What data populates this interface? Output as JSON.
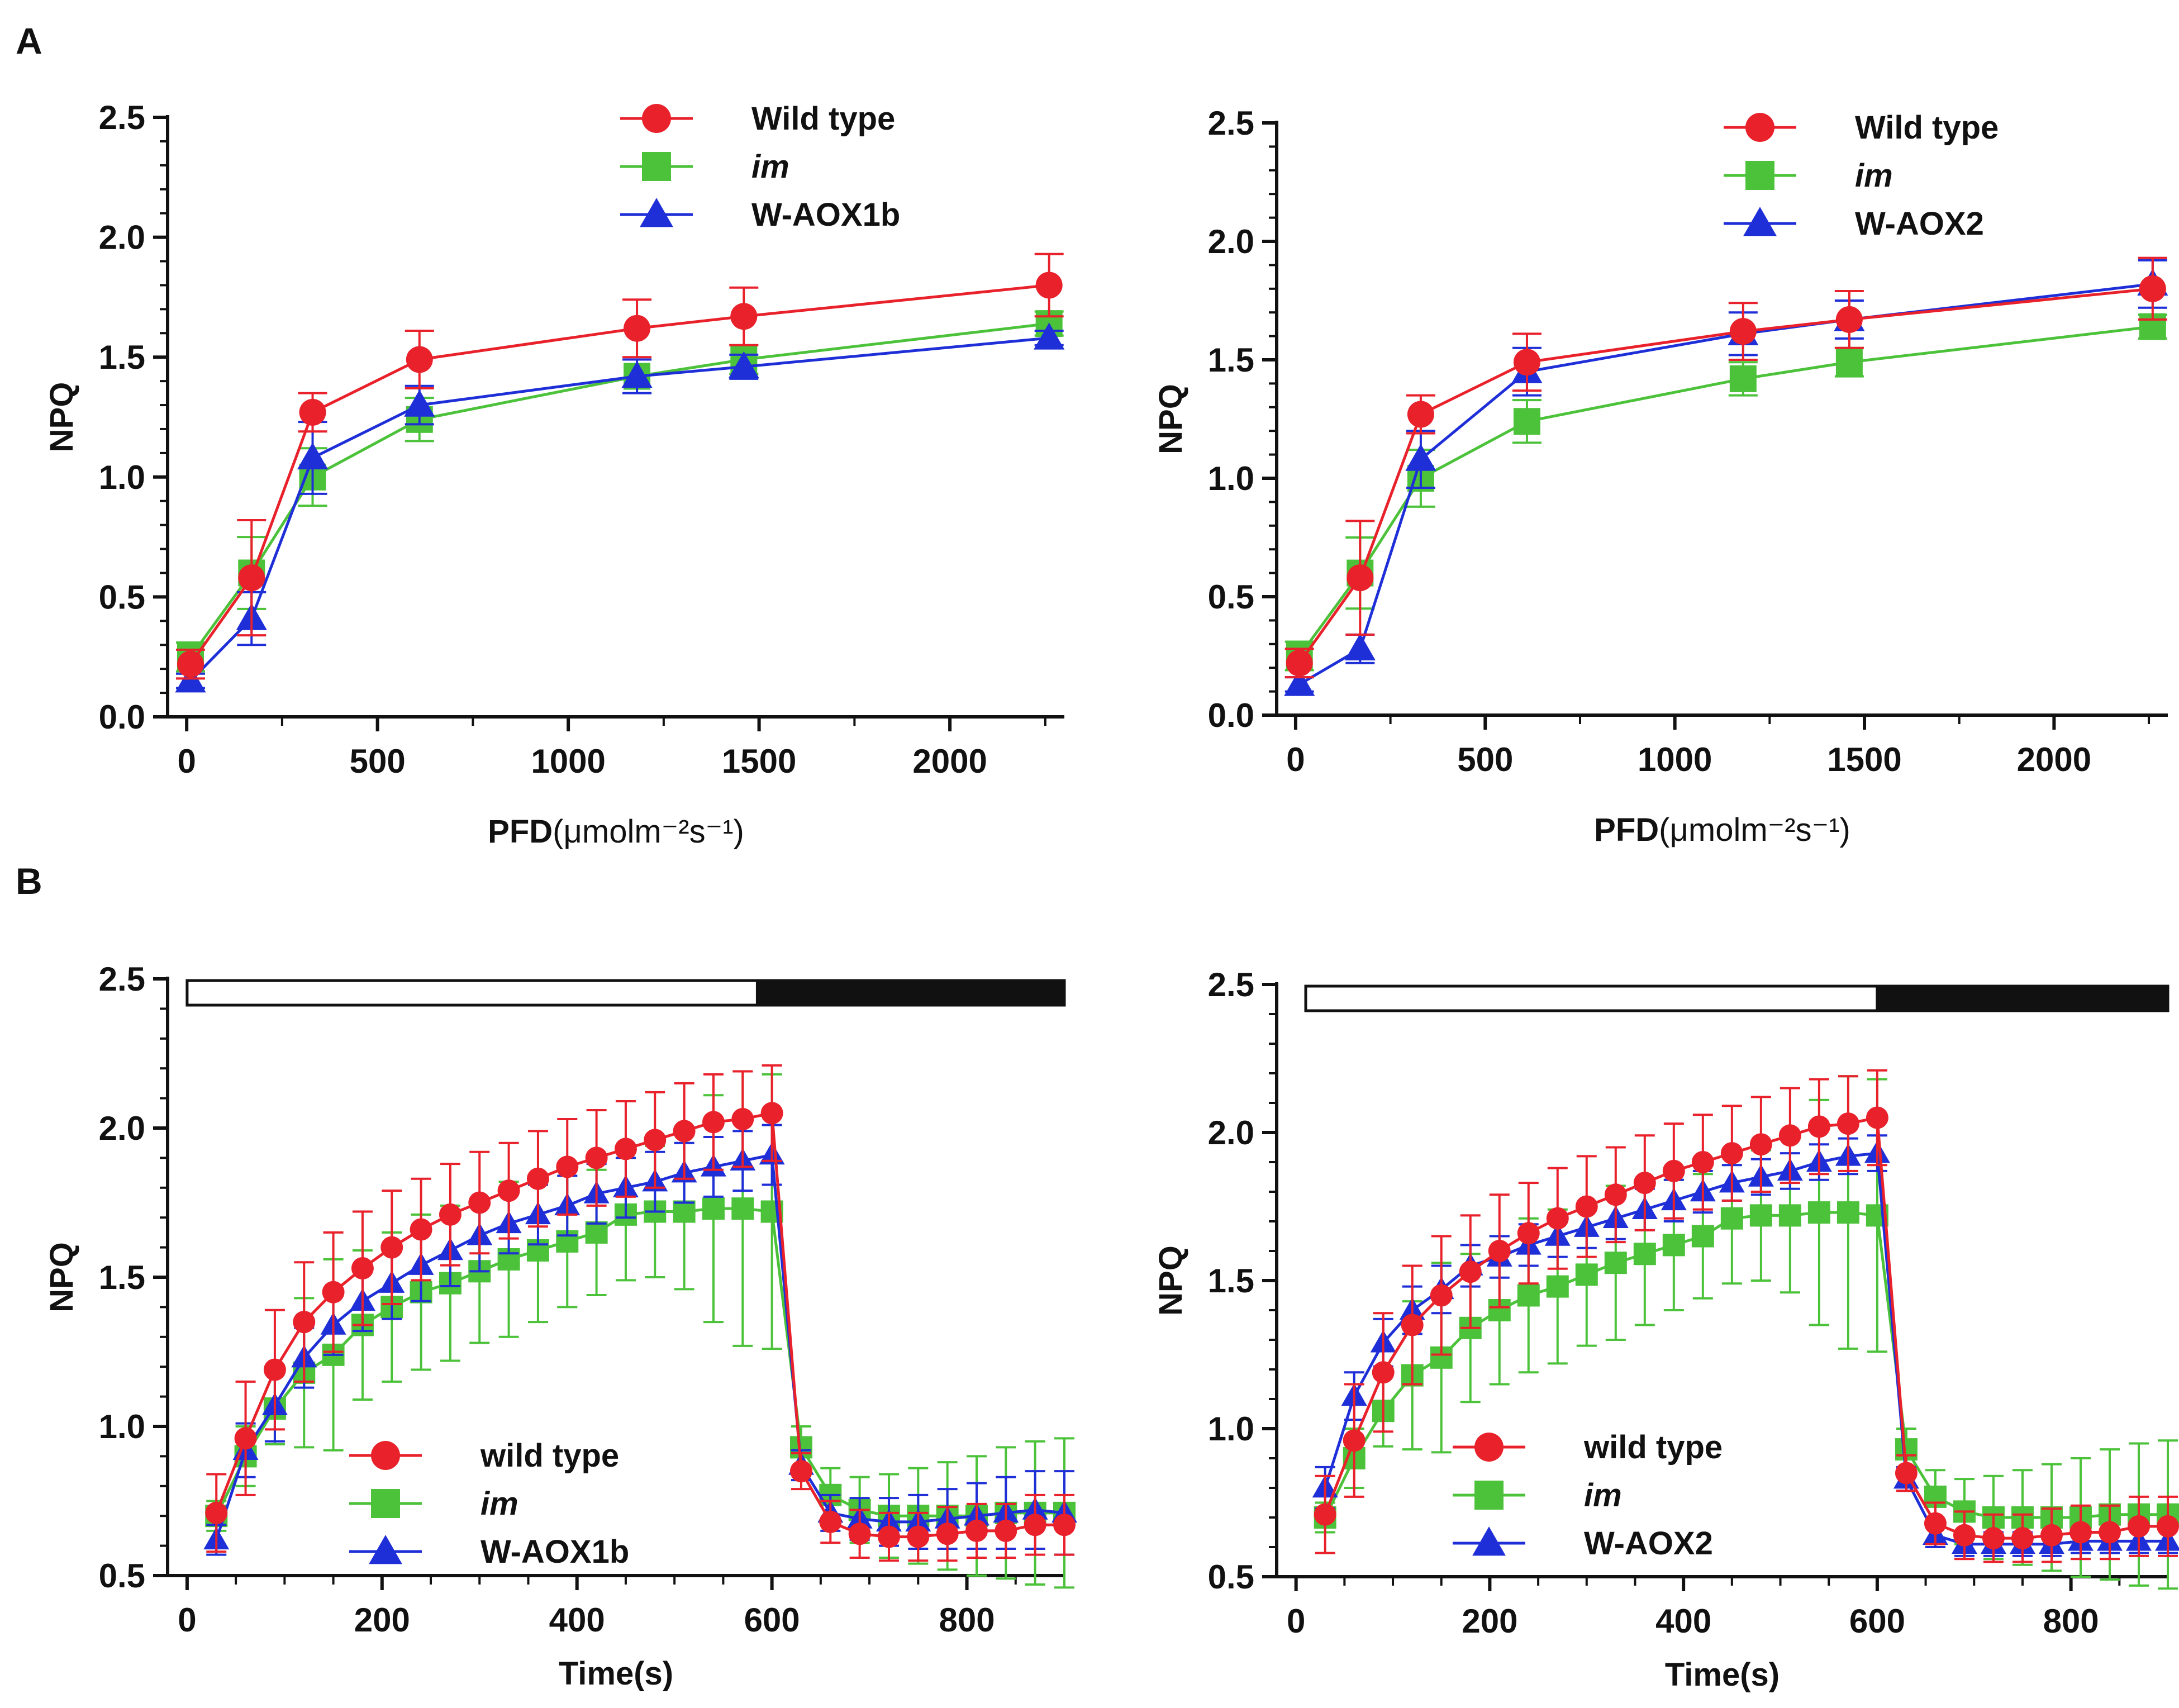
{
  "panel_labels": [
    "A",
    "B"
  ],
  "colors": {
    "wild_type": "#e8212b",
    "im": "#4cc23a",
    "aox": "#1f2fd8",
    "axis": "#111111"
  },
  "chart_data": [
    {
      "id": "A-left",
      "type": "line",
      "panel": "A",
      "xlabel": "PFD",
      "xunit": "(μmolm⁻²s⁻¹)",
      "ylabel": "NPQ",
      "xlim": [
        -50,
        2300
      ],
      "ylim": [
        0,
        2.5
      ],
      "xticks": [
        0,
        500,
        1000,
        1500,
        2000
      ],
      "yticks": [
        0.0,
        0.5,
        1.0,
        1.5,
        2.0,
        2.5
      ],
      "legend_position": "top-center",
      "series": [
        {
          "name": "Wild type",
          "color": "wild_type",
          "marker": "circle",
          "x": [
            10,
            170,
            330,
            610,
            1180,
            1460,
            2260
          ],
          "y": [
            0.22,
            0.58,
            1.27,
            1.49,
            1.62,
            1.67,
            1.8
          ],
          "err": [
            0.06,
            0.24,
            0.08,
            0.12,
            0.12,
            0.12,
            0.13
          ]
        },
        {
          "name": "im",
          "color": "im",
          "marker": "square",
          "italic": true,
          "x": [
            10,
            170,
            330,
            610,
            1180,
            1460,
            2260
          ],
          "y": [
            0.25,
            0.6,
            1.0,
            1.24,
            1.42,
            1.49,
            1.64
          ],
          "err": [
            0.06,
            0.15,
            0.12,
            0.09,
            0.07,
            0.06,
            0.05
          ]
        },
        {
          "name": "W-AOX1b",
          "color": "aox",
          "marker": "triangle",
          "x": [
            10,
            170,
            330,
            610,
            1180,
            1460,
            2260
          ],
          "y": [
            0.15,
            0.41,
            1.08,
            1.3,
            1.42,
            1.46,
            1.58
          ],
          "err": [
            0.03,
            0.11,
            0.15,
            0.08,
            0.07,
            0.05,
            0.03
          ]
        }
      ]
    },
    {
      "id": "A-right",
      "type": "line",
      "panel": "A",
      "xlabel": "PFD",
      "xunit": "(μmolm⁻²s⁻¹)",
      "ylabel": "NPQ",
      "xlim": [
        -50,
        2300
      ],
      "ylim": [
        0,
        2.5
      ],
      "xticks": [
        0,
        500,
        1000,
        1500,
        2000
      ],
      "yticks": [
        0.0,
        0.5,
        1.0,
        1.5,
        2.0,
        2.5
      ],
      "legend_position": "top-right",
      "series": [
        {
          "name": "Wild type",
          "color": "wild_type",
          "marker": "circle",
          "x": [
            10,
            170,
            330,
            610,
            1180,
            1460,
            2260
          ],
          "y": [
            0.22,
            0.58,
            1.27,
            1.49,
            1.62,
            1.67,
            1.8
          ],
          "err": [
            0.06,
            0.24,
            0.08,
            0.12,
            0.12,
            0.12,
            0.13
          ]
        },
        {
          "name": "im",
          "color": "im",
          "marker": "square",
          "italic": true,
          "x": [
            10,
            170,
            330,
            610,
            1180,
            1460,
            2260
          ],
          "y": [
            0.25,
            0.6,
            1.0,
            1.24,
            1.42,
            1.49,
            1.64
          ],
          "err": [
            0.06,
            0.15,
            0.12,
            0.09,
            0.07,
            0.06,
            0.05
          ]
        },
        {
          "name": "W-AOX2",
          "color": "aox",
          "marker": "triangle",
          "x": [
            10,
            170,
            330,
            610,
            1180,
            1460,
            2260
          ],
          "y": [
            0.13,
            0.28,
            1.08,
            1.45,
            1.61,
            1.67,
            1.82
          ],
          "err": [
            0.03,
            0.06,
            0.12,
            0.1,
            0.09,
            0.08,
            0.1
          ]
        }
      ]
    },
    {
      "id": "B-left",
      "type": "line",
      "panel": "B",
      "xlabel": "Time(s)",
      "ylabel": "NPQ",
      "xlim": [
        -20,
        900
      ],
      "ylim": [
        0.5,
        2.5
      ],
      "xticks": [
        0,
        200,
        400,
        600,
        800
      ],
      "yticks": [
        0.5,
        1.0,
        1.5,
        2.0,
        2.5
      ],
      "light_bar": {
        "light": [
          0,
          585
        ],
        "dark": [
          585,
          900
        ]
      },
      "legend_position": "bottom-center",
      "series": [
        {
          "name": "wild type",
          "color": "wild_type",
          "marker": "circle",
          "x": [
            30,
            60,
            90,
            120,
            150,
            180,
            210,
            240,
            270,
            300,
            330,
            360,
            390,
            420,
            450,
            480,
            510,
            540,
            570,
            600,
            630,
            660,
            690,
            720,
            750,
            780,
            810,
            840,
            870,
            900
          ],
          "y": [
            0.71,
            0.96,
            1.19,
            1.35,
            1.45,
            1.53,
            1.6,
            1.66,
            1.71,
            1.75,
            1.79,
            1.83,
            1.87,
            1.9,
            1.93,
            1.96,
            1.99,
            2.02,
            2.03,
            2.05,
            0.85,
            0.68,
            0.64,
            0.63,
            0.63,
            0.64,
            0.65,
            0.65,
            0.67,
            0.67
          ],
          "err": [
            0.13,
            0.19,
            0.2,
            0.2,
            0.2,
            0.19,
            0.19,
            0.17,
            0.17,
            0.17,
            0.16,
            0.16,
            0.16,
            0.16,
            0.16,
            0.16,
            0.16,
            0.16,
            0.16,
            0.16,
            0.06,
            0.07,
            0.08,
            0.08,
            0.08,
            0.09,
            0.09,
            0.09,
            0.1,
            0.1
          ]
        },
        {
          "name": "im",
          "color": "im",
          "marker": "square",
          "italic": true,
          "x": [
            30,
            60,
            90,
            120,
            150,
            180,
            210,
            240,
            270,
            300,
            330,
            360,
            390,
            420,
            450,
            480,
            510,
            540,
            570,
            600,
            630,
            660,
            690,
            720,
            750,
            780,
            810,
            840,
            870,
            900
          ],
          "y": [
            0.7,
            0.9,
            1.06,
            1.18,
            1.24,
            1.34,
            1.4,
            1.45,
            1.48,
            1.52,
            1.56,
            1.59,
            1.62,
            1.65,
            1.71,
            1.72,
            1.72,
            1.73,
            1.73,
            1.72,
            0.93,
            0.77,
            0.72,
            0.7,
            0.7,
            0.7,
            0.7,
            0.71,
            0.71,
            0.71
          ],
          "err": [
            0.05,
            0.1,
            0.12,
            0.25,
            0.32,
            0.25,
            0.25,
            0.26,
            0.26,
            0.24,
            0.26,
            0.24,
            0.22,
            0.21,
            0.22,
            0.22,
            0.26,
            0.38,
            0.46,
            0.46,
            0.07,
            0.09,
            0.11,
            0.14,
            0.16,
            0.18,
            0.2,
            0.22,
            0.24,
            0.25
          ]
        },
        {
          "name": "W-AOX1b",
          "color": "aox",
          "marker": "triangle",
          "x": [
            30,
            60,
            90,
            120,
            150,
            180,
            210,
            240,
            270,
            300,
            330,
            360,
            390,
            420,
            450,
            480,
            510,
            540,
            570,
            600,
            630,
            660,
            690,
            720,
            750,
            780,
            810,
            840,
            870,
            900
          ],
          "y": [
            0.62,
            0.92,
            1.07,
            1.23,
            1.34,
            1.42,
            1.48,
            1.54,
            1.59,
            1.64,
            1.68,
            1.71,
            1.74,
            1.78,
            1.8,
            1.82,
            1.85,
            1.87,
            1.89,
            1.91,
            0.87,
            0.71,
            0.69,
            0.68,
            0.68,
            0.69,
            0.7,
            0.71,
            0.72,
            0.71
          ],
          "err": [
            0.05,
            0.09,
            0.12,
            0.1,
            0.1,
            0.1,
            0.12,
            0.12,
            0.12,
            0.12,
            0.1,
            0.1,
            0.1,
            0.1,
            0.1,
            0.1,
            0.1,
            0.1,
            0.1,
            0.1,
            0.05,
            0.06,
            0.07,
            0.08,
            0.09,
            0.1,
            0.11,
            0.12,
            0.13,
            0.14
          ]
        }
      ]
    },
    {
      "id": "B-right",
      "type": "line",
      "panel": "B",
      "xlabel": "Time(s)",
      "ylabel": "NPQ",
      "xlim": [
        -20,
        900
      ],
      "ylim": [
        0.5,
        2.5
      ],
      "xticks": [
        0,
        200,
        400,
        600,
        800
      ],
      "yticks": [
        0.5,
        1.0,
        1.5,
        2.0,
        2.5
      ],
      "light_bar": {
        "light": [
          10,
          600
        ],
        "dark": [
          600,
          900
        ]
      },
      "legend_position": "bottom-center",
      "series": [
        {
          "name": "wild type",
          "color": "wild_type",
          "marker": "circle",
          "x": [
            30,
            60,
            90,
            120,
            150,
            180,
            210,
            240,
            270,
            300,
            330,
            360,
            390,
            420,
            450,
            480,
            510,
            540,
            570,
            600,
            630,
            660,
            690,
            720,
            750,
            780,
            810,
            840,
            870,
            900
          ],
          "y": [
            0.71,
            0.96,
            1.19,
            1.35,
            1.45,
            1.53,
            1.6,
            1.66,
            1.71,
            1.75,
            1.79,
            1.83,
            1.87,
            1.9,
            1.93,
            1.96,
            1.99,
            2.02,
            2.03,
            2.05,
            0.85,
            0.68,
            0.64,
            0.63,
            0.63,
            0.64,
            0.65,
            0.65,
            0.67,
            0.67
          ],
          "err": [
            0.13,
            0.19,
            0.2,
            0.2,
            0.2,
            0.19,
            0.19,
            0.17,
            0.17,
            0.17,
            0.16,
            0.16,
            0.16,
            0.16,
            0.16,
            0.16,
            0.16,
            0.16,
            0.16,
            0.16,
            0.06,
            0.07,
            0.08,
            0.08,
            0.08,
            0.09,
            0.09,
            0.09,
            0.1,
            0.1
          ]
        },
        {
          "name": "im",
          "color": "im",
          "marker": "square",
          "italic": true,
          "x": [
            30,
            60,
            90,
            120,
            150,
            180,
            210,
            240,
            270,
            300,
            330,
            360,
            390,
            420,
            450,
            480,
            510,
            540,
            570,
            600,
            630,
            660,
            690,
            720,
            750,
            780,
            810,
            840,
            870,
            900
          ],
          "y": [
            0.7,
            0.9,
            1.06,
            1.18,
            1.24,
            1.34,
            1.4,
            1.45,
            1.48,
            1.52,
            1.56,
            1.59,
            1.62,
            1.65,
            1.71,
            1.72,
            1.72,
            1.73,
            1.73,
            1.72,
            0.93,
            0.77,
            0.72,
            0.7,
            0.7,
            0.7,
            0.7,
            0.71,
            0.71,
            0.71
          ],
          "err": [
            0.05,
            0.1,
            0.12,
            0.25,
            0.32,
            0.25,
            0.25,
            0.26,
            0.26,
            0.24,
            0.26,
            0.24,
            0.22,
            0.21,
            0.22,
            0.22,
            0.26,
            0.38,
            0.46,
            0.46,
            0.07,
            0.09,
            0.11,
            0.14,
            0.16,
            0.18,
            0.2,
            0.22,
            0.24,
            0.25
          ]
        },
        {
          "name": "W-AOX2",
          "color": "aox",
          "marker": "triangle",
          "x": [
            30,
            60,
            90,
            120,
            150,
            180,
            210,
            240,
            270,
            300,
            330,
            360,
            390,
            420,
            450,
            480,
            510,
            540,
            570,
            600,
            630,
            660,
            690,
            720,
            750,
            780,
            810,
            840,
            870,
            900
          ],
          "y": [
            0.8,
            1.11,
            1.29,
            1.4,
            1.47,
            1.55,
            1.58,
            1.62,
            1.65,
            1.68,
            1.71,
            1.74,
            1.77,
            1.8,
            1.83,
            1.85,
            1.87,
            1.9,
            1.92,
            1.93,
            0.83,
            0.64,
            0.61,
            0.61,
            0.61,
            0.61,
            0.62,
            0.62,
            0.62,
            0.62
          ],
          "err": [
            0.07,
            0.08,
            0.08,
            0.08,
            0.08,
            0.07,
            0.07,
            0.07,
            0.07,
            0.07,
            0.07,
            0.07,
            0.07,
            0.07,
            0.06,
            0.06,
            0.06,
            0.06,
            0.06,
            0.06,
            0.04,
            0.04,
            0.04,
            0.04,
            0.04,
            0.04,
            0.04,
            0.04,
            0.04,
            0.04
          ]
        }
      ]
    }
  ]
}
